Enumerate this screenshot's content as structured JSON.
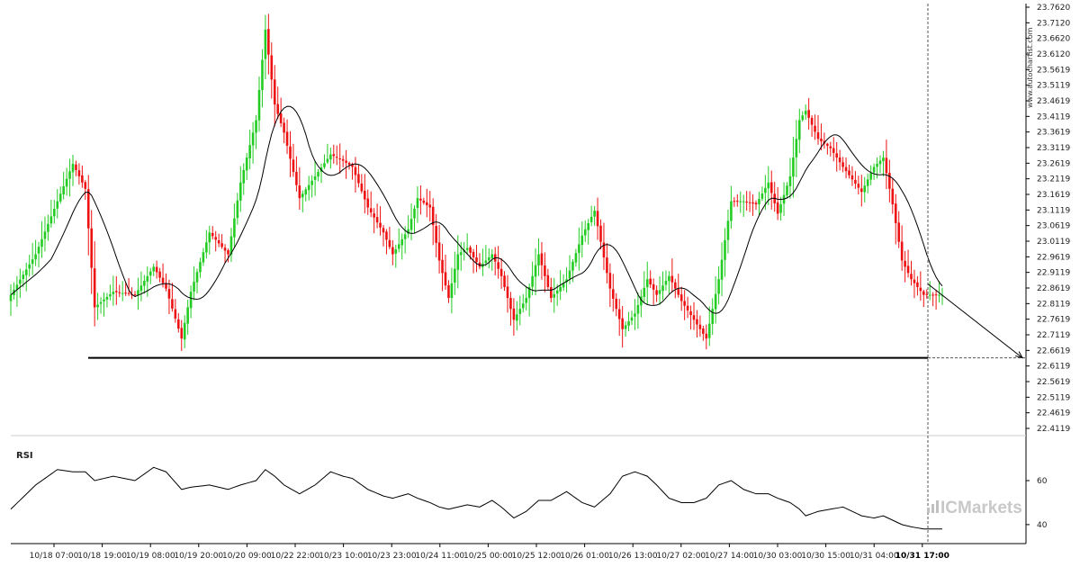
{
  "colors": {
    "up": "#22cc22",
    "down": "#ee1111",
    "ma_line": "#000000",
    "rsi_line": "#000000",
    "support": "#000000",
    "brand_bars": "#c0c0c0"
  },
  "watermark": "www.autochartist.com",
  "brand": "ICMarkets",
  "chart_data": [
    {
      "type": "candlestick",
      "title": "",
      "y_ticks": [
        "23.7620",
        "23.7120",
        "23.6620",
        "23.6120",
        "23.5619",
        "23.5119",
        "23.4619",
        "23.4119",
        "23.3619",
        "23.3119",
        "23.2619",
        "23.2119",
        "23.1619",
        "23.1119",
        "23.0619",
        "23.0119",
        "22.9619",
        "22.9119",
        "22.8619",
        "22.8119",
        "22.7619",
        "22.7119",
        "22.6619",
        "22.6119",
        "22.5619",
        "22.5119",
        "22.4619",
        "22.4119"
      ],
      "ylim": [
        22.4119,
        23.762
      ],
      "x_ticks": [
        "10/18 07:00",
        "10/18 19:00",
        "10/19 08:00",
        "10/19 20:00",
        "10/20 09:00",
        "10/22 22:00",
        "10/23 10:00",
        "10/23 23:00",
        "10/24 11:00",
        "10/25 00:00",
        "10/25 12:00",
        "10/26 01:00",
        "10/26 13:00",
        "10/27 02:00",
        "10/27 14:00",
        "10/30 03:00",
        "10/30 15:00",
        "10/31 04:00",
        "10/31 17:00"
      ],
      "current_x_tick": "10/31 17:00",
      "support_level": 22.638,
      "moving_average": true,
      "forecast_arrow": {
        "from": 22.875,
        "to": 22.638
      },
      "series": [
        {
          "anchors": [
            [
              0,
              22.84
            ],
            [
              8,
              22.97
            ],
            [
              15,
              23.14
            ],
            [
              20,
              23.26
            ],
            [
              24,
              23.18
            ],
            [
              27,
              22.8
            ],
            [
              33,
              22.85
            ],
            [
              40,
              22.84
            ],
            [
              46,
              22.93
            ],
            [
              50,
              22.86
            ],
            [
              55,
              22.7
            ],
            [
              58,
              22.85
            ],
            [
              64,
              23.04
            ],
            [
              70,
              22.97
            ],
            [
              74,
              23.2
            ],
            [
              79,
              23.4
            ],
            [
              82,
              23.69
            ],
            [
              85,
              23.45
            ],
            [
              88,
              23.36
            ],
            [
              93,
              23.15
            ],
            [
              98,
              23.22
            ],
            [
              103,
              23.29
            ],
            [
              107,
              23.27
            ],
            [
              110,
              23.25
            ],
            [
              115,
              23.12
            ],
            [
              120,
              23.04
            ],
            [
              123,
              22.97
            ],
            [
              128,
              23.05
            ],
            [
              131,
              23.15
            ],
            [
              135,
              23.12
            ],
            [
              138,
              22.95
            ],
            [
              141,
              22.83
            ],
            [
              144,
              22.97
            ],
            [
              147,
              22.99
            ],
            [
              151,
              22.93
            ],
            [
              155,
              22.97
            ],
            [
              158,
              22.9
            ],
            [
              162,
              22.76
            ],
            [
              166,
              22.83
            ],
            [
              170,
              22.97
            ],
            [
              174,
              22.83
            ],
            [
              179,
              22.89
            ],
            [
              184,
              23.03
            ],
            [
              188,
              23.11
            ],
            [
              193,
              22.86
            ],
            [
              197,
              22.73
            ],
            [
              201,
              22.78
            ],
            [
              205,
              22.89
            ],
            [
              208,
              22.84
            ],
            [
              212,
              22.9
            ],
            [
              216,
              22.82
            ],
            [
              220,
              22.76
            ],
            [
              224,
              22.7
            ],
            [
              228,
              22.89
            ],
            [
              232,
              23.14
            ],
            [
              236,
              23.14
            ],
            [
              240,
              23.13
            ],
            [
              244,
              23.2
            ],
            [
              247,
              23.1
            ],
            [
              251,
              23.22
            ],
            [
              254,
              23.4
            ],
            [
              256,
              23.43
            ],
            [
              260,
              23.34
            ],
            [
              264,
              23.31
            ],
            [
              268,
              23.25
            ],
            [
              271,
              23.21
            ],
            [
              274,
              23.17
            ],
            [
              278,
              23.25
            ],
            [
              281,
              23.28
            ],
            [
              284,
              23.13
            ],
            [
              287,
              22.95
            ],
            [
              290,
              22.89
            ],
            [
              294,
              22.84
            ]
          ]
        }
      ]
    },
    {
      "type": "line",
      "title": "RSI",
      "y_ticks": [
        "60",
        "40"
      ],
      "ylim": [
        33,
        78
      ],
      "series": [
        {
          "anchors": [
            [
              0,
              47
            ],
            [
              8,
              58
            ],
            [
              15,
              65
            ],
            [
              20,
              64
            ],
            [
              24,
              64
            ],
            [
              27,
              60
            ],
            [
              33,
              62
            ],
            [
              40,
              60
            ],
            [
              46,
              66
            ],
            [
              50,
              64
            ],
            [
              55,
              56
            ],
            [
              58,
              57
            ],
            [
              64,
              58
            ],
            [
              70,
              56
            ],
            [
              74,
              58
            ],
            [
              79,
              60
            ],
            [
              82,
              65
            ],
            [
              85,
              62
            ],
            [
              88,
              58
            ],
            [
              93,
              54
            ],
            [
              98,
              58
            ],
            [
              103,
              64
            ],
            [
              107,
              62
            ],
            [
              110,
              61
            ],
            [
              115,
              56
            ],
            [
              120,
              53
            ],
            [
              123,
              52
            ],
            [
              128,
              54
            ],
            [
              131,
              52
            ],
            [
              135,
              50
            ],
            [
              138,
              48
            ],
            [
              141,
              47
            ],
            [
              144,
              48
            ],
            [
              147,
              49
            ],
            [
              151,
              48
            ],
            [
              155,
              51
            ],
            [
              158,
              48
            ],
            [
              162,
              43
            ],
            [
              166,
              46
            ],
            [
              170,
              51
            ],
            [
              174,
              51
            ],
            [
              179,
              55
            ],
            [
              184,
              50
            ],
            [
              188,
              48
            ],
            [
              193,
              54
            ],
            [
              197,
              62
            ],
            [
              201,
              64
            ],
            [
              205,
              62
            ],
            [
              208,
              58
            ],
            [
              212,
              52
            ],
            [
              216,
              50
            ],
            [
              220,
              50
            ],
            [
              224,
              52
            ],
            [
              228,
              58
            ],
            [
              232,
              60
            ],
            [
              236,
              56
            ],
            [
              240,
              54
            ],
            [
              244,
              54
            ],
            [
              247,
              52
            ],
            [
              251,
              50
            ],
            [
              254,
              47
            ],
            [
              256,
              44
            ],
            [
              260,
              46
            ],
            [
              264,
              47
            ],
            [
              268,
              48
            ],
            [
              271,
              46
            ],
            [
              274,
              44
            ],
            [
              278,
              43
            ],
            [
              281,
              44
            ],
            [
              284,
              42
            ],
            [
              287,
              40
            ],
            [
              290,
              39
            ],
            [
              294,
              38
            ]
          ]
        }
      ]
    }
  ]
}
